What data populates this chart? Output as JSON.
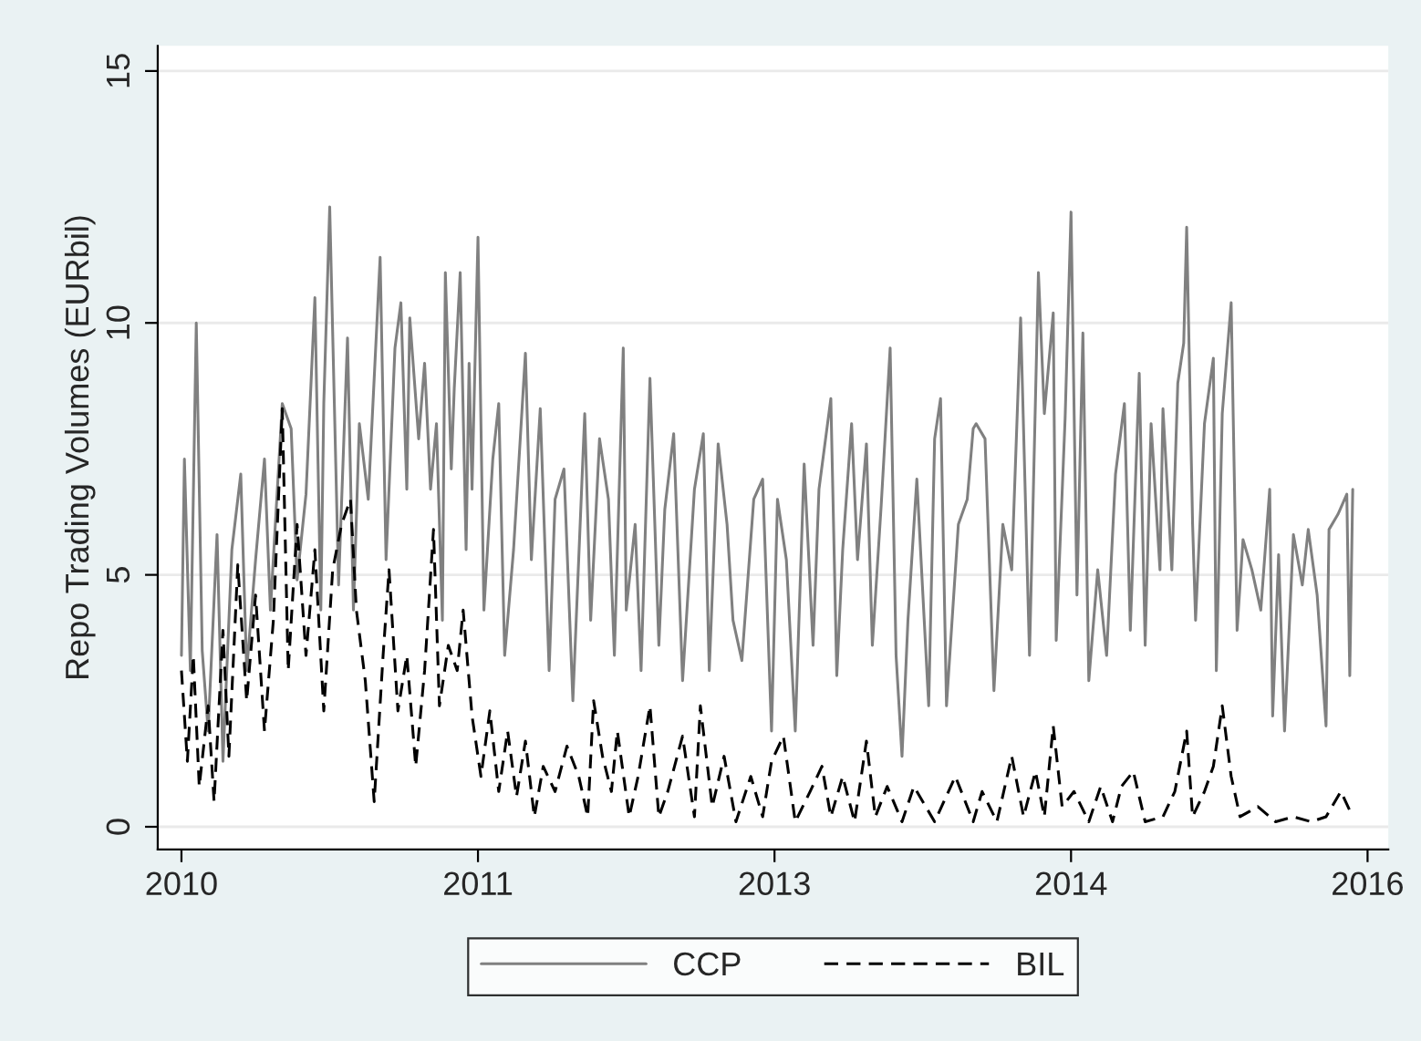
{
  "chart_data": {
    "type": "line",
    "ylabel": "Repo Trading Volumes (EURbil)",
    "xlim": [
      2009.88,
      2016.105
    ],
    "xticks": [
      2010,
      {
        "value": 2011.5,
        "label": "2011"
      },
      2013,
      {
        "value": 2014.5,
        "label": "2014"
      },
      2016
    ],
    "ylim": [
      -0.45,
      15.5
    ],
    "yticks": [
      0,
      5,
      10,
      15
    ],
    "grid": "y",
    "legend": "bottom",
    "series": [
      {
        "name": "CCP",
        "color": "#808080",
        "line_style": "solid",
        "x": [
          2010.0,
          2010.015,
          2010.045,
          2010.075,
          2010.105,
          2010.135,
          2010.18,
          2010.21,
          2010.255,
          2010.3,
          2010.33,
          2010.375,
          2010.42,
          2010.45,
          2010.51,
          2010.555,
          2010.585,
          2010.63,
          2010.675,
          2010.705,
          2010.72,
          2010.75,
          2010.795,
          2010.84,
          2010.87,
          2010.9,
          2010.945,
          2011.005,
          2011.035,
          2011.08,
          2011.11,
          2011.14,
          2011.155,
          2011.2,
          2011.23,
          2011.26,
          2011.29,
          2011.32,
          2011.335,
          2011.365,
          2011.38,
          2011.41,
          2011.44,
          2011.455,
          2011.47,
          2011.5,
          2011.53,
          2011.575,
          2011.605,
          2011.635,
          2011.68,
          2011.74,
          2011.77,
          2011.815,
          2011.86,
          2011.89,
          2011.935,
          2011.98,
          2012.04,
          2012.07,
          2012.115,
          2012.16,
          2012.19,
          2012.235,
          2012.25,
          2012.295,
          2012.325,
          2012.37,
          2012.415,
          2012.445,
          2012.49,
          2012.535,
          2012.595,
          2012.64,
          2012.67,
          2012.715,
          2012.76,
          2012.79,
          2012.835,
          2012.895,
          2012.94,
          2012.985,
          2013.015,
          2013.06,
          2013.105,
          2013.15,
          2013.195,
          2013.225,
          2013.285,
          2013.315,
          2013.345,
          2013.39,
          2013.42,
          2013.465,
          2013.495,
          2013.54,
          2013.585,
          2013.615,
          2013.645,
          2013.675,
          2013.72,
          2013.78,
          2013.81,
          2013.84,
          2013.87,
          2013.93,
          2013.975,
          2014.005,
          2014.02,
          2014.065,
          2014.11,
          2014.155,
          2014.2,
          2014.245,
          2014.29,
          2014.335,
          2014.365,
          2014.41,
          2014.425,
          2014.47,
          2014.5,
          2014.53,
          2014.56,
          2014.59,
          2014.635,
          2014.68,
          2014.725,
          2014.77,
          2014.8,
          2014.845,
          2014.875,
          2014.905,
          2014.95,
          2014.965,
          2015.01,
          2015.04,
          2015.07,
          2015.085,
          2015.115,
          2015.13,
          2015.175,
          2015.22,
          2015.235,
          2015.265,
          2015.31,
          2015.34,
          2015.37,
          2015.415,
          2015.46,
          2015.505,
          2015.52,
          2015.55,
          2015.58,
          2015.625,
          2015.67,
          2015.7,
          2015.745,
          2015.79,
          2015.805,
          2015.85,
          2015.895,
          2015.91,
          2015.925
        ],
        "values": [
          3.4,
          7.3,
          3.1,
          10.0,
          3.5,
          1.9,
          5.8,
          1.3,
          5.5,
          7.0,
          3.1,
          5.3,
          7.3,
          4.3,
          8.4,
          7.9,
          4.9,
          6.6,
          10.5,
          4.3,
          8.4,
          12.3,
          4.8,
          9.7,
          4.3,
          8.0,
          6.5,
          11.3,
          5.3,
          9.5,
          10.4,
          6.7,
          10.1,
          7.7,
          9.2,
          6.7,
          8.0,
          4.1,
          11.0,
          7.1,
          8.7,
          11.0,
          5.5,
          9.2,
          6.7,
          11.7,
          4.3,
          7.3,
          8.4,
          3.4,
          5.5,
          9.4,
          5.3,
          8.3,
          3.1,
          6.5,
          7.1,
          2.5,
          8.2,
          4.1,
          7.7,
          6.5,
          3.4,
          9.5,
          4.3,
          6.0,
          3.1,
          8.9,
          3.6,
          6.3,
          7.8,
          2.9,
          6.7,
          7.8,
          3.1,
          7.6,
          6.0,
          4.1,
          3.3,
          6.5,
          6.9,
          1.9,
          6.5,
          5.3,
          1.9,
          7.2,
          3.6,
          6.7,
          8.5,
          3.0,
          5.5,
          8.0,
          5.3,
          7.6,
          3.6,
          6.4,
          9.5,
          3.4,
          1.4,
          4.1,
          6.9,
          2.4,
          7.7,
          8.5,
          2.4,
          6.0,
          6.5,
          7.9,
          8.0,
          7.7,
          2.7,
          6.0,
          5.1,
          10.1,
          3.4,
          11.0,
          8.2,
          10.2,
          3.7,
          8.1,
          12.2,
          4.6,
          9.8,
          2.9,
          5.1,
          3.4,
          7.0,
          8.4,
          3.9,
          9.0,
          3.6,
          8.0,
          5.1,
          8.3,
          5.1,
          8.8,
          9.6,
          11.9,
          6.0,
          4.1,
          8.0,
          9.3,
          3.1,
          8.2,
          10.4,
          3.9,
          5.7,
          5.1,
          4.3,
          6.7,
          2.2,
          5.4,
          1.9,
          5.8,
          4.8,
          5.9,
          4.6,
          2.0,
          5.9,
          6.2,
          6.6,
          3.0,
          6.7
        ]
      },
      {
        "name": "BIL",
        "color": "#000000",
        "line_style": "dashed",
        "x": [
          2010.0,
          2010.03,
          2010.06,
          2010.09,
          2010.135,
          2010.165,
          2010.21,
          2010.24,
          2010.285,
          2010.33,
          2010.375,
          2010.42,
          2010.465,
          2010.51,
          2010.54,
          2010.585,
          2010.63,
          2010.675,
          2010.72,
          2010.765,
          2010.81,
          2010.855,
          2010.885,
          2010.93,
          2010.975,
          2011.02,
          2011.05,
          2011.095,
          2011.14,
          2011.185,
          2011.23,
          2011.275,
          2011.305,
          2011.35,
          2011.395,
          2011.425,
          2011.47,
          2011.515,
          2011.56,
          2011.605,
          2011.65,
          2011.695,
          2011.74,
          2011.785,
          2011.83,
          2011.89,
          2011.95,
          2012.01,
          2012.055,
          2012.085,
          2012.13,
          2012.175,
          2012.205,
          2012.265,
          2012.31,
          2012.37,
          2012.415,
          2012.46,
          2012.535,
          2012.595,
          2012.625,
          2012.685,
          2012.745,
          2012.805,
          2012.88,
          2012.94,
          2012.985,
          2013.045,
          2013.105,
          2013.18,
          2013.24,
          2013.285,
          2013.345,
          2013.405,
          2013.465,
          2013.51,
          2013.57,
          2013.645,
          2013.705,
          2013.81,
          2013.915,
          2014.005,
          2014.05,
          2014.125,
          2014.2,
          2014.26,
          2014.32,
          2014.365,
          2014.41,
          2014.455,
          2014.515,
          2014.59,
          2014.65,
          2014.71,
          2014.755,
          2014.815,
          2014.875,
          2014.965,
          2015.025,
          2015.085,
          2015.115,
          2015.175,
          2015.22,
          2015.265,
          2015.31,
          2015.355,
          2015.445,
          2015.535,
          2015.625,
          2015.715,
          2015.79,
          2015.865,
          2015.925
        ],
        "values": [
          3.1,
          1.3,
          3.4,
          0.8,
          2.4,
          0.5,
          3.9,
          1.4,
          5.2,
          2.5,
          4.6,
          1.9,
          4.1,
          8.3,
          3.1,
          6.0,
          3.4,
          5.5,
          2.3,
          5.1,
          6.0,
          6.5,
          4.3,
          2.9,
          0.5,
          3.4,
          5.1,
          2.3,
          3.4,
          1.2,
          3.1,
          5.9,
          2.4,
          3.6,
          3.1,
          4.3,
          2.2,
          1.0,
          2.3,
          0.7,
          1.9,
          0.6,
          1.7,
          0.2,
          1.2,
          0.7,
          1.6,
          1.0,
          0.2,
          2.5,
          1.4,
          0.7,
          1.9,
          0.2,
          1.0,
          2.4,
          0.2,
          0.7,
          1.8,
          0.2,
          2.4,
          0.4,
          1.4,
          0.1,
          1.0,
          0.2,
          1.3,
          1.8,
          0.1,
          0.7,
          1.2,
          0.2,
          1.0,
          0.1,
          1.7,
          0.2,
          0.8,
          0.1,
          0.8,
          0.1,
          1.0,
          0.1,
          0.7,
          0.1,
          1.4,
          0.2,
          1.1,
          0.2,
          2.0,
          0.4,
          0.7,
          0.1,
          0.8,
          0.1,
          0.8,
          1.1,
          0.1,
          0.2,
          0.7,
          1.9,
          0.2,
          0.7,
          1.2,
          2.4,
          1.0,
          0.2,
          0.4,
          0.1,
          0.2,
          0.1,
          0.2,
          0.7,
          0.2
        ]
      }
    ]
  }
}
